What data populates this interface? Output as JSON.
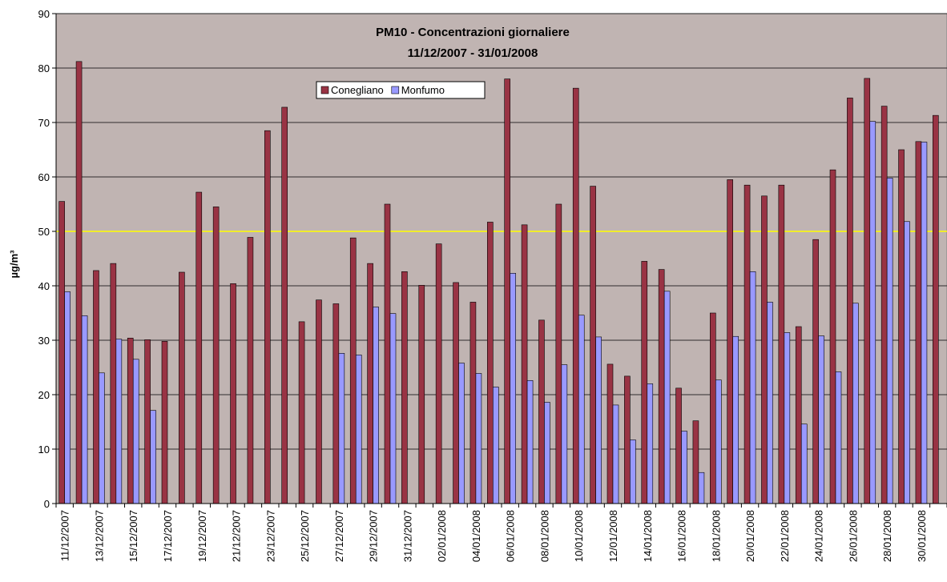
{
  "chart_data": {
    "type": "bar",
    "title": "PM10 - Concentrazioni giornaliere",
    "subtitle": "11/12/2007 - 31/01/2008",
    "y_label": "µg/m³",
    "categories": [
      "11/12/2007",
      null,
      "13/12/2007",
      null,
      "15/12/2007",
      null,
      "17/12/2007",
      null,
      "19/12/2007",
      null,
      "21/12/2007",
      null,
      "23/12/2007",
      null,
      "25/12/2007",
      null,
      "27/12/2007",
      null,
      "29/12/2007",
      null,
      "31/12/2007",
      null,
      "02/01/2008",
      null,
      "04/01/2008",
      null,
      "06/01/2008",
      null,
      "08/01/2008",
      null,
      "10/01/2008",
      null,
      "12/01/2008",
      null,
      "14/01/2008",
      null,
      "16/01/2008",
      null,
      "18/01/2008",
      null,
      "20/01/2008",
      null,
      "22/01/2008",
      null,
      "24/01/2008",
      null,
      "26/01/2008",
      null,
      "28/01/2008",
      null,
      "30/01/2008",
      null
    ],
    "series": [
      {
        "name": "Conegliano",
        "color": "#993344",
        "values": [
          55.5,
          81.2,
          42.8,
          44.1,
          30.4,
          30.1,
          29.8,
          42.5,
          57.2,
          54.5,
          40.4,
          48.9,
          68.5,
          72.8,
          33.4,
          37.4,
          36.7,
          48.8,
          44.1,
          55.0,
          42.6,
          40.1,
          47.7,
          40.6,
          37.0,
          51.7,
          78.0,
          51.2,
          33.7,
          55.0,
          76.3,
          58.3,
          25.6,
          23.4,
          44.5,
          43.0,
          21.2,
          15.2,
          35.0,
          59.5,
          58.5,
          56.5,
          58.5,
          32.5,
          48.5,
          61.3,
          74.5,
          78.1,
          73.0,
          65.0,
          66.5,
          71.3
        ]
      },
      {
        "name": "Monfumo",
        "color": "#9999ff",
        "values": [
          38.9,
          34.5,
          24.0,
          30.2,
          26.5,
          17.1,
          null,
          null,
          null,
          null,
          null,
          null,
          null,
          null,
          null,
          null,
          27.6,
          27.3,
          36.1,
          34.9,
          null,
          null,
          null,
          25.8,
          23.9,
          21.4,
          42.3,
          22.6,
          18.6,
          25.5,
          34.6,
          30.6,
          18.1,
          11.7,
          22.0,
          39.0,
          13.3,
          5.7,
          22.7,
          30.7,
          42.6,
          37.0,
          31.4,
          14.6,
          30.8,
          24.2,
          36.8,
          70.2,
          59.8,
          51.8,
          66.4,
          null
        ]
      }
    ],
    "threshold": 50,
    "threshold_color": "#ffff00",
    "ylim": [
      0,
      90
    ],
    "yticks": [
      0,
      10,
      20,
      30,
      40,
      50,
      60,
      70,
      80,
      90
    ],
    "grid": true,
    "background": "#c0b4b2"
  }
}
